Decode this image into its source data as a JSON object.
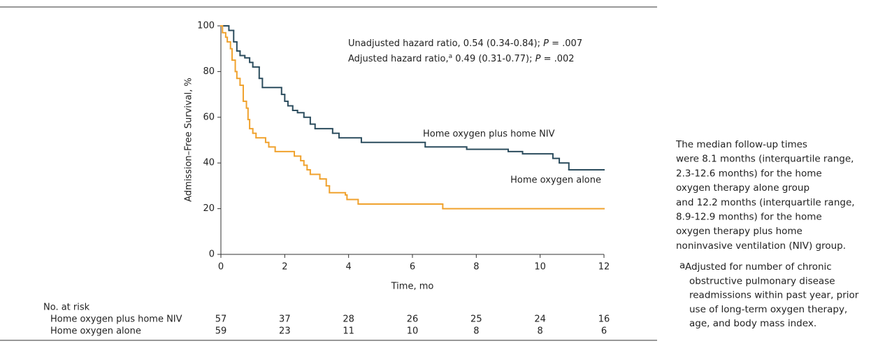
{
  "chart_data": {
    "type": "step",
    "xlabel": "Time, mo",
    "ylabel": "Admission–Free Survival, %",
    "xlim": [
      0,
      12
    ],
    "xticks": [
      0,
      2,
      4,
      6,
      8,
      10,
      12
    ],
    "ylim": [
      0,
      100
    ],
    "yticks": [
      0,
      20,
      40,
      60,
      80,
      100
    ],
    "annotations": [
      {
        "text": "Unadjusted hazard ratio, 0.54 (0.34-0.84); ",
        "p": "P",
        "p_value": " = .007"
      },
      {
        "text": "Adjusted hazard ratio,",
        "sup": "a",
        "text2": " 0.49 (0.31-0.77); ",
        "p": "P",
        "p_value": " = .002"
      }
    ],
    "series": [
      {
        "name": "Home oxygen plus home NIV",
        "color": "#2c4d5e",
        "x": [
          0,
          0.25,
          0.4,
          0.5,
          0.6,
          0.75,
          0.9,
          1.0,
          1.2,
          1.3,
          1.9,
          2.0,
          2.1,
          2.25,
          2.4,
          2.6,
          2.8,
          2.95,
          3.5,
          3.7,
          4.4,
          6.4,
          7.7,
          9.0,
          9.45,
          10.4,
          10.6,
          10.9
        ],
        "values": [
          100,
          98,
          93,
          89,
          87,
          86,
          84,
          82,
          77,
          73,
          70,
          67,
          65,
          63,
          62,
          60,
          57,
          55,
          53,
          51,
          49,
          47,
          46,
          45,
          44,
          42,
          40,
          37
        ]
      },
      {
        "name": "Home oxygen alone",
        "color": "#f0a22e",
        "x": [
          0,
          0.05,
          0.15,
          0.2,
          0.3,
          0.35,
          0.45,
          0.5,
          0.6,
          0.7,
          0.8,
          0.85,
          0.9,
          1.0,
          1.1,
          1.4,
          1.5,
          1.7,
          2.3,
          2.5,
          2.6,
          2.7,
          2.8,
          3.1,
          3.3,
          3.4,
          3.9,
          3.95,
          4.3,
          6.95
        ],
        "values": [
          100,
          97,
          95,
          93,
          90,
          85,
          80,
          77,
          74,
          67,
          64,
          59,
          55,
          53,
          51,
          49,
          47,
          45,
          43,
          41,
          39,
          37,
          35,
          33,
          30,
          27,
          26,
          24,
          22,
          20
        ]
      }
    ],
    "risk_table": {
      "title": "No. at risk",
      "rows": [
        {
          "name": "Home oxygen plus home NIV",
          "values": [
            57,
            37,
            28,
            26,
            25,
            24,
            16
          ]
        },
        {
          "name": "Home oxygen alone",
          "values": [
            59,
            23,
            11,
            10,
            8,
            8,
            6
          ]
        }
      ]
    }
  },
  "note": {
    "lines": [
      "The median follow-up times",
      "were 8.1 months (interquartile range,",
      "2.3-12.6 months) for the home",
      "oxygen therapy alone group",
      "and 12.2 months (interquartile range,",
      "8.9-12.9 months) for the home",
      "oxygen therapy plus home",
      "noninvasive ventilation (NIV) group."
    ],
    "footnote_mark": "a",
    "footnote": [
      "Adjusted for number of chronic",
      "obstructive pulmonary disease",
      "readmissions within past year, prior",
      "use of long-term oxygen therapy,",
      "age, and body mass index."
    ]
  }
}
